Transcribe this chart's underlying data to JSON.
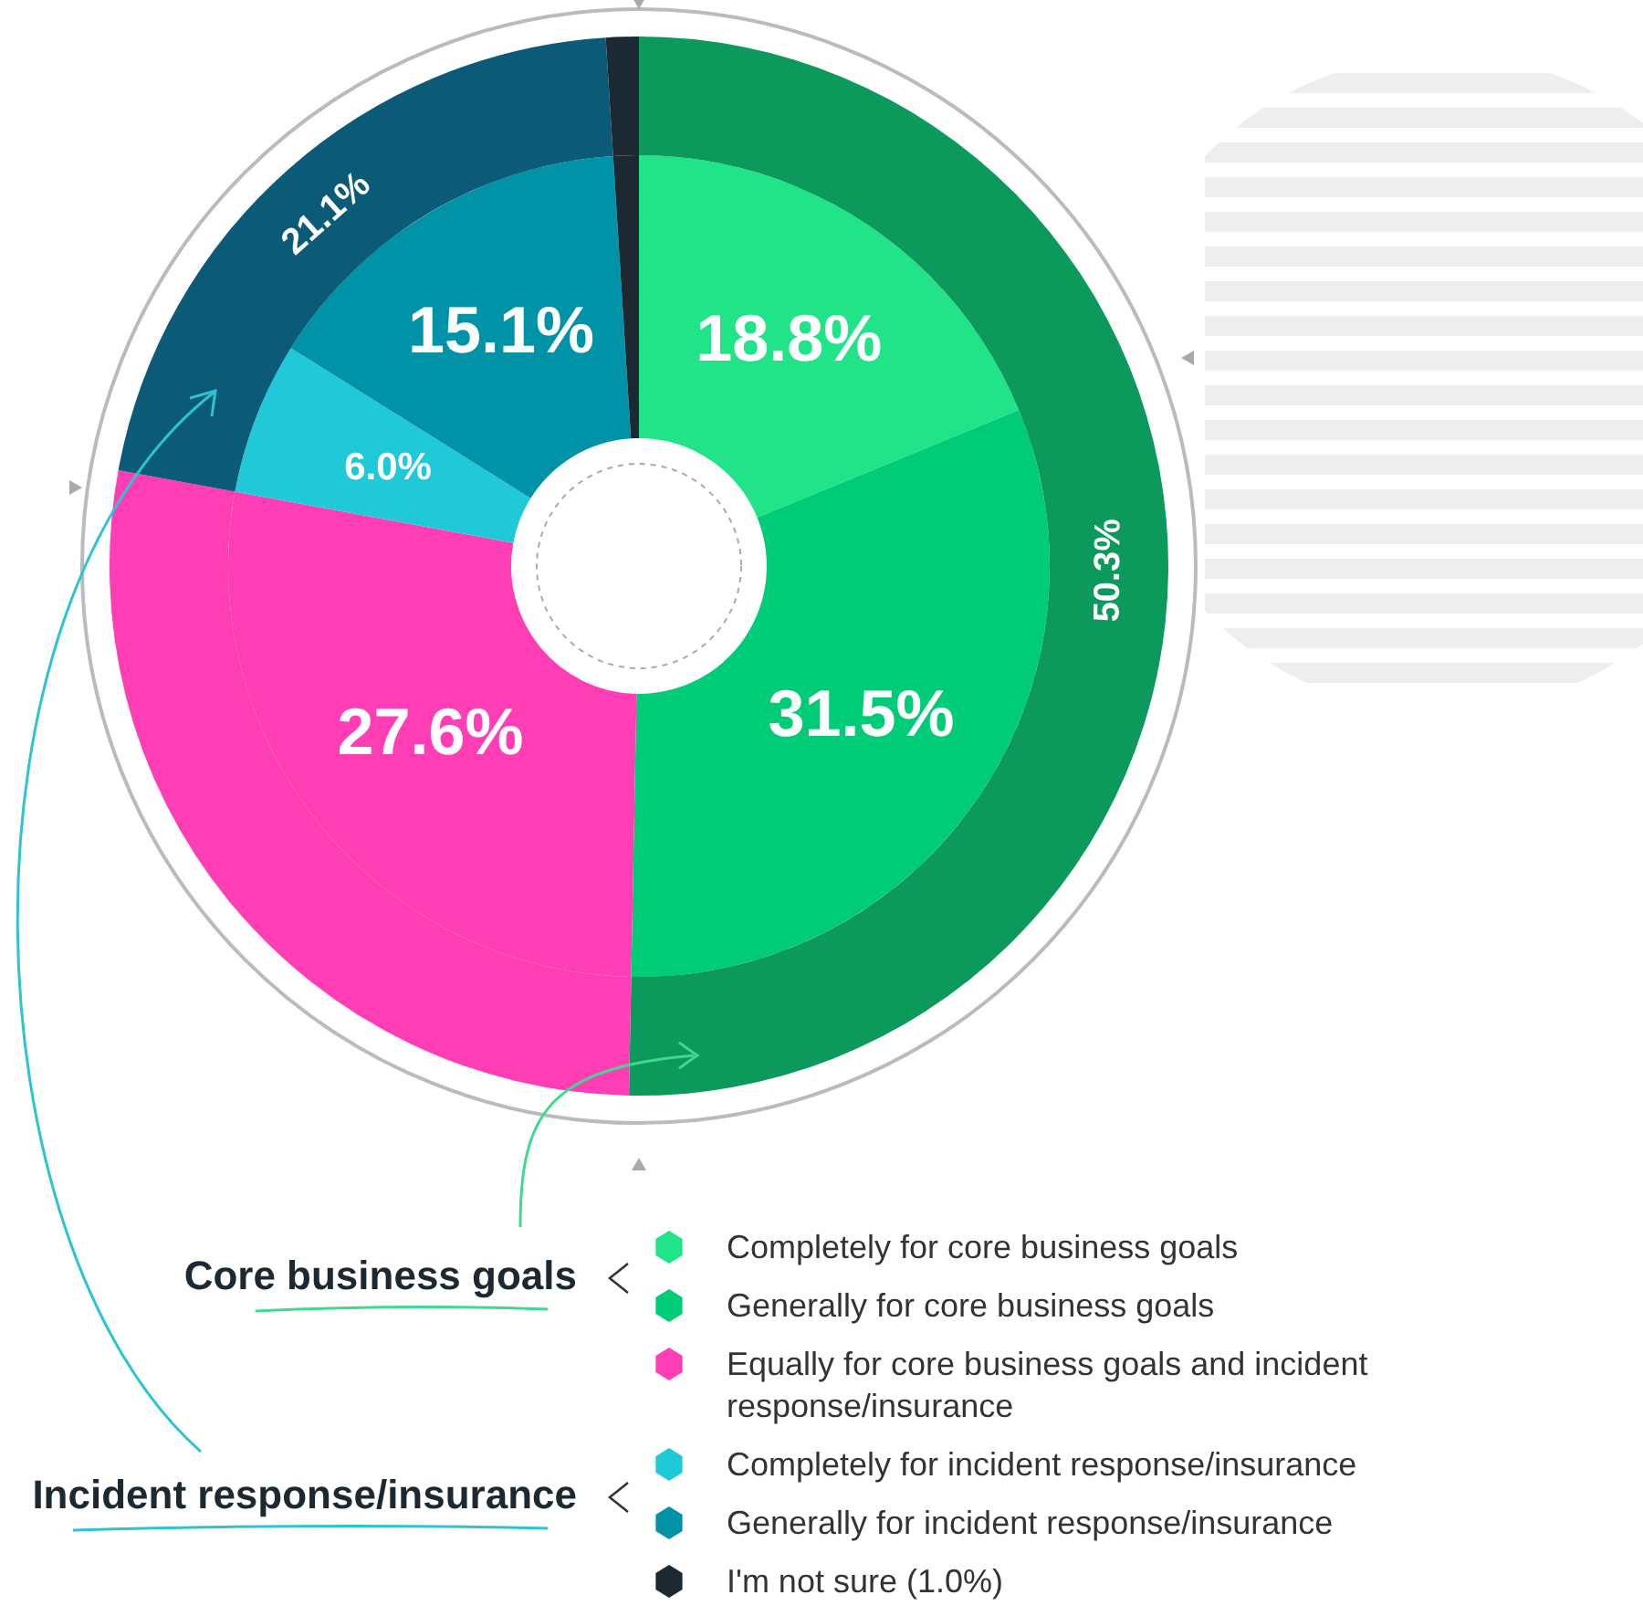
{
  "chart_data": {
    "type": "donut",
    "categories": [
      "Completely for core business goals",
      "Generally for core business goals",
      "Equally for core business goals and incident response/insurance",
      "Completely for incident response/insurance",
      "Generally for incident response/insurance",
      "I'm not sure (1.0%)"
    ],
    "series": [
      {
        "values": [
          18.8,
          31.5,
          27.6,
          6.0,
          15.1,
          1.0
        ],
        "colors": [
          "#20e487",
          "#00cc78",
          "#ff3eb5",
          "#20c9d8",
          "#0093a8",
          "#1d2932"
        ],
        "value_labels": [
          "18.8%",
          "31.5%",
          "27.6%",
          "6.0%",
          "15.1%",
          null
        ]
      },
      {
        "values": [
          50.3,
          null,
          27.6,
          21.1,
          null,
          1.0
        ],
        "colors": [
          "#0b9a5c",
          "#0b9a5c",
          "#ff3eb5",
          "#0b5a78",
          "#0b5a78",
          "#1d2932"
        ],
        "value_labels": [
          "50.3%",
          null,
          null,
          "21.1%",
          null,
          null
        ]
      }
    ],
    "legend": "bottom",
    "annotations": [
      "Core business goals",
      "Incident response/insurance"
    ]
  }
}
